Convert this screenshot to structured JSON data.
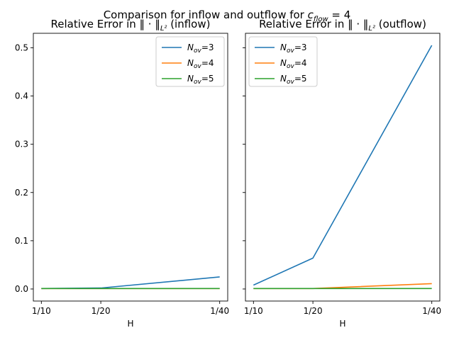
{
  "figure": {
    "suptitle": {
      "pre": "Comparison for inflow and outflow for ",
      "sym": "c",
      "sub": "flow",
      "post": " = 4"
    }
  },
  "chart_data": [
    {
      "type": "line",
      "title": {
        "pre": "Relative Error in ‖ · ‖",
        "sub": "L²",
        "post": " (inflow)"
      },
      "xlabel": "H",
      "ylabel": "",
      "categories": [
        "1/10",
        "1/20",
        "1/40"
      ],
      "x": [
        0.1,
        0.05,
        0.025
      ],
      "xaxis": "reciprocal",
      "ylim": [
        -0.025,
        0.53
      ],
      "yticks": [
        0.0,
        0.1,
        0.2,
        0.3,
        0.4,
        0.5
      ],
      "ytick_labels": [
        "0.0",
        "0.1",
        "0.2",
        "0.3",
        "0.4",
        "0.5"
      ],
      "grid": false,
      "legend_position": "upper right",
      "series": [
        {
          "name": {
            "sym": "N",
            "sub": "ov",
            "post": "=3"
          },
          "color": "#1f77b4",
          "values": [
            0.001,
            0.002,
            0.025
          ]
        },
        {
          "name": {
            "sym": "N",
            "sub": "ov",
            "post": "=4"
          },
          "color": "#ff7f0e",
          "values": [
            0.001,
            0.001,
            0.001
          ]
        },
        {
          "name": {
            "sym": "N",
            "sub": "ov",
            "post": "=5"
          },
          "color": "#2ca02c",
          "values": [
            0.001,
            0.001,
            0.001
          ]
        }
      ]
    },
    {
      "type": "line",
      "title": {
        "pre": "Relative Error in ‖ · ‖",
        "sub": "L²",
        "post": " (outflow)"
      },
      "xlabel": "H",
      "ylabel": "",
      "categories": [
        "1/10",
        "1/20",
        "1/40"
      ],
      "x": [
        0.1,
        0.05,
        0.025
      ],
      "xaxis": "reciprocal",
      "ylim": [
        -0.025,
        0.53
      ],
      "yticks": [
        0.0,
        0.1,
        0.2,
        0.3,
        0.4,
        0.5
      ],
      "ytick_labels": [],
      "sharey": true,
      "grid": false,
      "legend_position": "upper left",
      "series": [
        {
          "name": {
            "sym": "N",
            "sub": "ov",
            "post": "=3"
          },
          "color": "#1f77b4",
          "values": [
            0.008,
            0.064,
            0.505
          ]
        },
        {
          "name": {
            "sym": "N",
            "sub": "ov",
            "post": "=4"
          },
          "color": "#ff7f0e",
          "values": [
            0.001,
            0.001,
            0.011
          ]
        },
        {
          "name": {
            "sym": "N",
            "sub": "ov",
            "post": "=5"
          },
          "color": "#2ca02c",
          "values": [
            0.001,
            0.001,
            0.001
          ]
        }
      ]
    }
  ]
}
